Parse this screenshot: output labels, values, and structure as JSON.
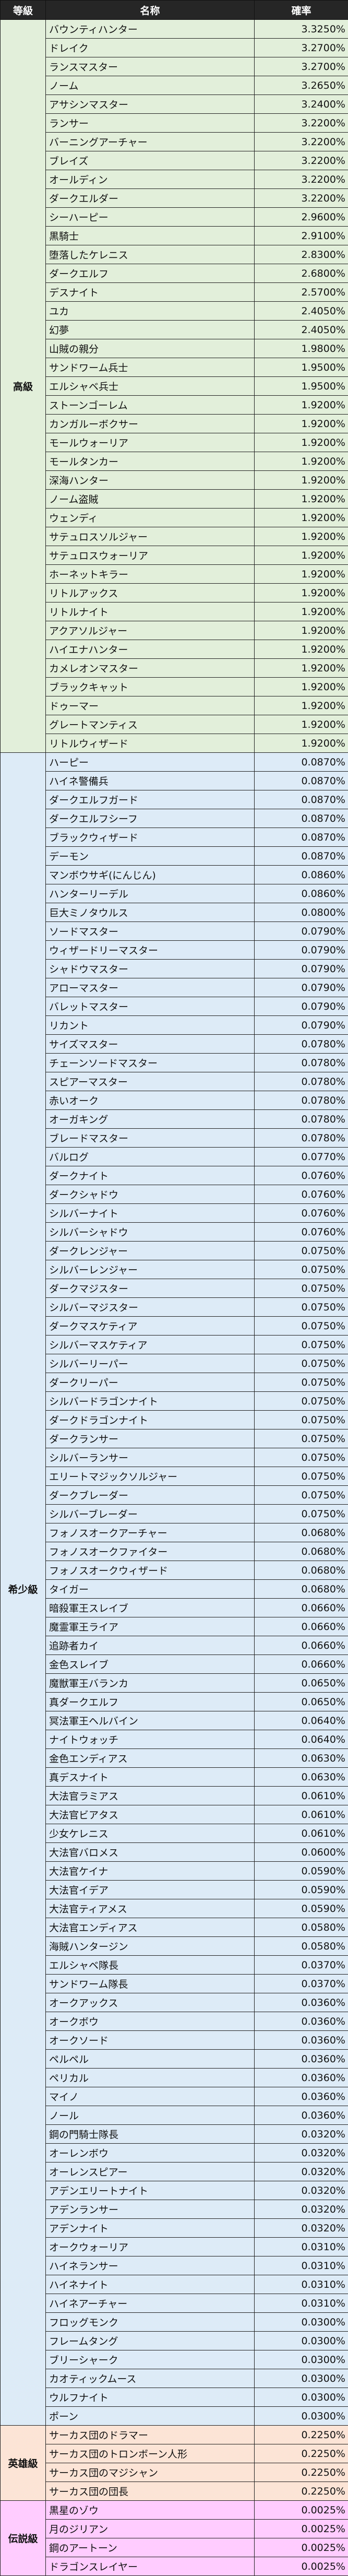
{
  "header": {
    "grade": "等級",
    "name": "名称",
    "rate": "確率"
  },
  "grades": [
    {
      "label": "高級",
      "color": "#e2efda",
      "rows": [
        [
          "バウンティハンター",
          "3.3250%"
        ],
        [
          "ドレイク",
          "3.2700%"
        ],
        [
          "ランスマスター",
          "3.2700%"
        ],
        [
          "ノーム",
          "3.2650%"
        ],
        [
          "アサシンマスター",
          "3.2400%"
        ],
        [
          "ランサー",
          "3.2200%"
        ],
        [
          "バーニングアーチャー",
          "3.2200%"
        ],
        [
          "ブレイズ",
          "3.2200%"
        ],
        [
          "オールディン",
          "3.2200%"
        ],
        [
          "ダークエルダー",
          "3.2200%"
        ],
        [
          "シーハーピー",
          "2.9600%"
        ],
        [
          "黒騎士",
          "2.9100%"
        ],
        [
          "堕落したケレニス",
          "2.8300%"
        ],
        [
          "ダークエルフ",
          "2.6800%"
        ],
        [
          "デスナイト",
          "2.5700%"
        ],
        [
          "ユカ",
          "2.4050%"
        ],
        [
          "幻夢",
          "2.4050%"
        ],
        [
          "山賊の親分",
          "1.9800%"
        ],
        [
          "サンドワーム兵士",
          "1.9500%"
        ],
        [
          "エルシャベ兵士",
          "1.9500%"
        ],
        [
          "ストーンゴーレム",
          "1.9200%"
        ],
        [
          "カンガルーボクサー",
          "1.9200%"
        ],
        [
          "モールウォーリア",
          "1.9200%"
        ],
        [
          "モールタンカー",
          "1.9200%"
        ],
        [
          "深海ハンター",
          "1.9200%"
        ],
        [
          "ノーム盗賊",
          "1.9200%"
        ],
        [
          "ウェンディ",
          "1.9200%"
        ],
        [
          "サテュロスソルジャー",
          "1.9200%"
        ],
        [
          "サテュロスウォーリア",
          "1.9200%"
        ],
        [
          "ホーネットキラー",
          "1.9200%"
        ],
        [
          "リトルアックス",
          "1.9200%"
        ],
        [
          "リトルナイト",
          "1.9200%"
        ],
        [
          "アクアソルジャー",
          "1.9200%"
        ],
        [
          "ハイエナハンター",
          "1.9200%"
        ],
        [
          "カメレオンマスター",
          "1.9200%"
        ],
        [
          "ブラックキャット",
          "1.9200%"
        ],
        [
          "ドゥーマー",
          "1.9200%"
        ],
        [
          "グレートマンティス",
          "1.9200%"
        ],
        [
          "リトルウィザード",
          "1.9200%"
        ]
      ]
    },
    {
      "label": "希少級",
      "color": "#ddebf7",
      "rows": [
        [
          "ハーピー",
          "0.0870%"
        ],
        [
          "ハイネ警備兵",
          "0.0870%"
        ],
        [
          "ダークエルフガード",
          "0.0870%"
        ],
        [
          "ダークエルフシーフ",
          "0.0870%"
        ],
        [
          "ブラックウィザード",
          "0.0870%"
        ],
        [
          "デーモン",
          "0.0870%"
        ],
        [
          "マンボウサギ(にんじん)",
          "0.0860%"
        ],
        [
          "ハンターリーデル",
          "0.0860%"
        ],
        [
          "巨大ミノタウルス",
          "0.0800%"
        ],
        [
          "ソードマスター",
          "0.0790%"
        ],
        [
          "ウィザードリーマスター",
          "0.0790%"
        ],
        [
          "シャドウマスター",
          "0.0790%"
        ],
        [
          "アローマスター",
          "0.0790%"
        ],
        [
          "バレットマスター",
          "0.0790%"
        ],
        [
          "リカント",
          "0.0790%"
        ],
        [
          "サイズマスター",
          "0.0780%"
        ],
        [
          "チェーンソードマスター",
          "0.0780%"
        ],
        [
          "スピアーマスター",
          "0.0780%"
        ],
        [
          "赤いオーク",
          "0.0780%"
        ],
        [
          "オーガキング",
          "0.0780%"
        ],
        [
          "ブレードマスター",
          "0.0780%"
        ],
        [
          "バルログ",
          "0.0770%"
        ],
        [
          "ダークナイト",
          "0.0760%"
        ],
        [
          "ダークシャドウ",
          "0.0760%"
        ],
        [
          "シルバーナイト",
          "0.0760%"
        ],
        [
          "シルバーシャドウ",
          "0.0760%"
        ],
        [
          "ダークレンジャー",
          "0.0750%"
        ],
        [
          "シルバーレンジャー",
          "0.0750%"
        ],
        [
          "ダークマジスター",
          "0.0750%"
        ],
        [
          "シルバーマジスター",
          "0.0750%"
        ],
        [
          "ダークマスケティア",
          "0.0750%"
        ],
        [
          "シルバーマスケティア",
          "0.0750%"
        ],
        [
          "シルバーリーパー",
          "0.0750%"
        ],
        [
          "ダークリーパー",
          "0.0750%"
        ],
        [
          "シルバードラゴンナイト",
          "0.0750%"
        ],
        [
          "ダークドラゴンナイト",
          "0.0750%"
        ],
        [
          "ダークランサー",
          "0.0750%"
        ],
        [
          "シルバーランサー",
          "0.0750%"
        ],
        [
          "エリートマジックソルジャー",
          "0.0750%"
        ],
        [
          "ダークブレーダー",
          "0.0750%"
        ],
        [
          "シルバーブレーダー",
          "0.0750%"
        ],
        [
          "フォノスオークアーチャー",
          "0.0680%"
        ],
        [
          "フォノスオークファイター",
          "0.0680%"
        ],
        [
          "フォノスオークウィザード",
          "0.0680%"
        ],
        [
          "タイガー",
          "0.0680%"
        ],
        [
          "暗殺軍王スレイブ",
          "0.0660%"
        ],
        [
          "魔霊軍王ライア",
          "0.0660%"
        ],
        [
          "追跡者カイ",
          "0.0660%"
        ],
        [
          "金色スレイブ",
          "0.0660%"
        ],
        [
          "魔獣軍王バランカ",
          "0.0650%"
        ],
        [
          "真ダークエルフ",
          "0.0650%"
        ],
        [
          "冥法軍王ヘルバイン",
          "0.0640%"
        ],
        [
          "ナイトウォッチ",
          "0.0640%"
        ],
        [
          "金色エンディアス",
          "0.0630%"
        ],
        [
          "真デスナイト",
          "0.0630%"
        ],
        [
          "大法官ラミアス",
          "0.0610%"
        ],
        [
          "大法官ビアタス",
          "0.0610%"
        ],
        [
          "少女ケレニス",
          "0.0610%"
        ],
        [
          "大法官バロメス",
          "0.0600%"
        ],
        [
          "大法官ケイナ",
          "0.0590%"
        ],
        [
          "大法官イデア",
          "0.0590%"
        ],
        [
          "大法官ティアメス",
          "0.0590%"
        ],
        [
          "大法官エンディアス",
          "0.0580%"
        ],
        [
          "海賊ハンタージン",
          "0.0580%"
        ],
        [
          "エルシャベ隊長",
          "0.0370%"
        ],
        [
          "サンドワーム隊長",
          "0.0370%"
        ],
        [
          "オークアックス",
          "0.0360%"
        ],
        [
          "オークボウ",
          "0.0360%"
        ],
        [
          "オークソード",
          "0.0360%"
        ],
        [
          "ペルペル",
          "0.0360%"
        ],
        [
          "ペリカル",
          "0.0360%"
        ],
        [
          "マイノ",
          "0.0360%"
        ],
        [
          "ノール",
          "0.0360%"
        ],
        [
          "鋼の門騎士隊長",
          "0.0320%"
        ],
        [
          "オーレンボウ",
          "0.0320%"
        ],
        [
          "オーレンスピアー",
          "0.0320%"
        ],
        [
          "アデンエリートナイト",
          "0.0320%"
        ],
        [
          "アデンランサー",
          "0.0320%"
        ],
        [
          "アデンナイト",
          "0.0320%"
        ],
        [
          "オークウォーリア",
          "0.0310%"
        ],
        [
          "ハイネランサー",
          "0.0310%"
        ],
        [
          "ハイネナイト",
          "0.0310%"
        ],
        [
          "ハイネアーチャー",
          "0.0310%"
        ],
        [
          "フロッグモンク",
          "0.0300%"
        ],
        [
          "フレームタング",
          "0.0300%"
        ],
        [
          "ブリーシャーク",
          "0.0300%"
        ],
        [
          "カオティックムース",
          "0.0300%"
        ],
        [
          "ウルフナイト",
          "0.0300%"
        ],
        [
          "ポーン",
          "0.0300%"
        ]
      ]
    },
    {
      "label": "英雄級",
      "color": "#fce4d6",
      "rows": [
        [
          "サーカス団のドラマー",
          "0.2250%"
        ],
        [
          "サーカス団のトロンボーン人形",
          "0.2250%"
        ],
        [
          "サーカス団のマジシャン",
          "0.2250%"
        ],
        [
          "サーカス団の団長",
          "0.2250%"
        ]
      ]
    },
    {
      "label": "伝説級",
      "color": "#ffccff",
      "rows": [
        [
          "黒星のゾウ",
          "0.0025%"
        ],
        [
          "月のジリアン",
          "0.0025%"
        ],
        [
          "鋼のアートーン",
          "0.0025%"
        ],
        [
          "ドラゴンスレイヤー",
          "0.0025%"
        ]
      ]
    }
  ]
}
